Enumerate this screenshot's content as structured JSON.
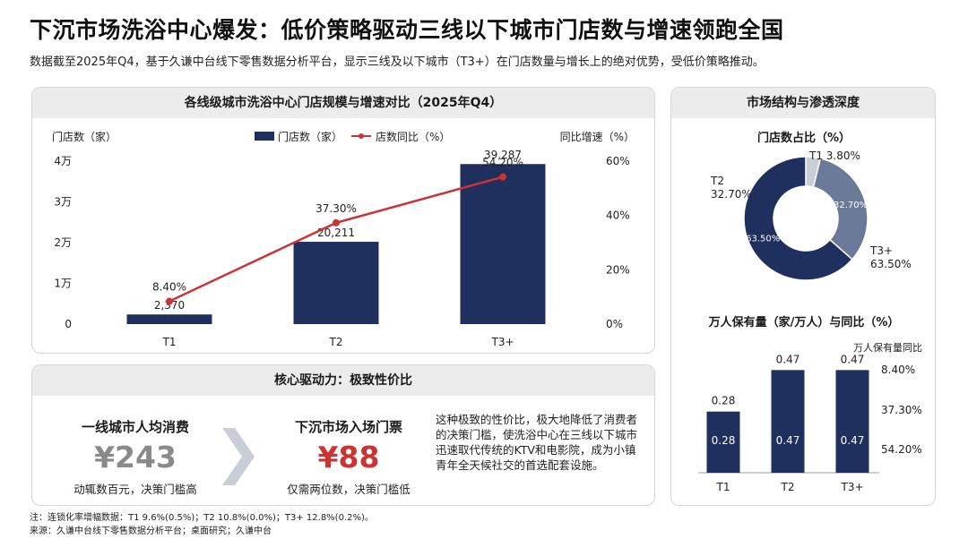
{
  "header": {
    "title": "下沉市场洗浴中心爆发：低价策略驱动三线以下城市门店数与增速领跑全国",
    "subtitle": "数据截至2025年Q4，基于久谦中台线下零售数据分析平台，显示三线及以下城市（T3+）在门店数量与增长上的绝对优势，受低价策略推动。"
  },
  "left_panel": {
    "title": "各线级城市洗浴中心门店规模与增速对比（2025年Q4）",
    "y_left_title": "门店数（家）",
    "y_right_title": "同比增速（%）",
    "legend_bar": "门店数（家）",
    "legend_line": "店数同比（%）"
  },
  "driver_panel": {
    "title": "核心驱动力：极致性价比",
    "tier1_label": "一线城市人均消费",
    "tier1_value": "¥243",
    "tier1_note": "动辄数百元，决策门槛高",
    "lower_label": "下沉市场入场门票",
    "lower_value": "¥88",
    "lower_note": "仅需两位数，决策门槛低",
    "text": "这种极致的性价比，极大地降低了消费者的决策门槛，使洗浴中心在三线以下城市迅速取代传统的KTV和电影院，成为小镇青年全天候社交的首选配套设施。"
  },
  "right_panel": {
    "title": "市场结构与渗透深度",
    "pie_title": "门店数占比（%）",
    "bar_title": "万人保有量（家/万人）与同比（%）",
    "bar_side_title": "万人保有量同比"
  },
  "footnote": {
    "note": "注：连锁化率增幅数据：T1 9.6%(0.5%)；T2 10.8%(0.0%)；T3+ 12.8%(0.2%)。",
    "source": "来源：久谦中台线下零售数据分析平台；桌面研究；久谦中台"
  },
  "colors": {
    "navy": "#1f2f5e",
    "slate": "#6b7a99",
    "light": "#c9cdd6",
    "red": "#cc3333",
    "gray_value": "#8a8a8a"
  },
  "chart_data": [
    {
      "type": "bar",
      "title": "各线级城市洗浴中心门店规模与增速对比（2025年Q4）",
      "categories": [
        "T1",
        "T2",
        "T3+"
      ],
      "series": [
        {
          "name": "门店数（家）",
          "type": "bar",
          "axis": "left",
          "values": [
            2370,
            20211,
            39287
          ],
          "labels": [
            "2,370",
            "20,211",
            "39,287"
          ]
        },
        {
          "name": "店数同比（%）",
          "type": "line",
          "axis": "right",
          "values": [
            8.4,
            37.3,
            54.2
          ],
          "labels": [
            "8.40%",
            "37.30%",
            "54.20%"
          ]
        }
      ],
      "y_left": {
        "title": "门店数（家）",
        "range": [
          0,
          40000
        ],
        "ticks": [
          0,
          10000,
          20000,
          30000,
          40000
        ],
        "tick_labels": [
          "0",
          "1万",
          "2万",
          "3万",
          "4万"
        ]
      },
      "y_right": {
        "title": "同比增速（%）",
        "range": [
          0,
          60
        ],
        "ticks": [
          0,
          20,
          40,
          60
        ],
        "tick_labels": [
          "0%",
          "20%",
          "40%",
          "60%"
        ]
      },
      "legend": "top-center",
      "grid": false
    },
    {
      "type": "pie",
      "title": "门店数占比（%）",
      "categories": [
        "T1",
        "T2",
        "T3+"
      ],
      "values": [
        3.8,
        32.7,
        63.5
      ],
      "outer_labels": [
        "T1 3.80%",
        "T2\n32.70%",
        "T3+\n63.50%"
      ],
      "inner_labels": [
        "",
        "32.70%",
        "63.50%"
      ],
      "donut": true
    },
    {
      "type": "bar",
      "title": "万人保有量（家/万人）与同比（%）",
      "categories": [
        "T1",
        "T2",
        "T3+"
      ],
      "values": [
        0.28,
        0.47,
        0.47
      ],
      "labels": [
        "0.28",
        "0.47",
        "0.47"
      ],
      "side_title": "万人保有量同比",
      "side_values": [
        "8.40%",
        "37.30%",
        "54.20%"
      ]
    }
  ]
}
